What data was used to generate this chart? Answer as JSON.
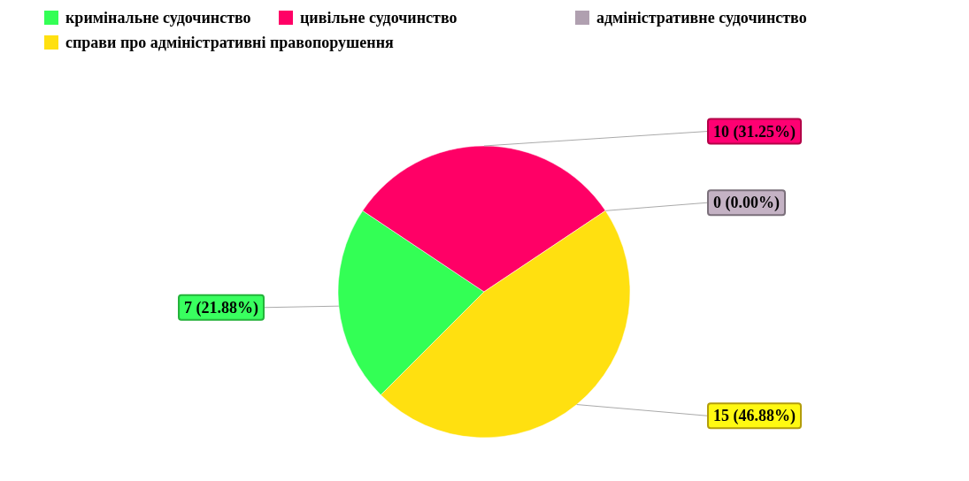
{
  "chart_data": {
    "type": "pie",
    "categories": [
      "кримінальне судочинство",
      "цивільне судочинство",
      "адміністративне судочинство",
      "справи про адміністративні правопорушення"
    ],
    "values": [
      7,
      10,
      0,
      15
    ],
    "colors": [
      "#33ff55",
      "#ff0066",
      "#b0a0b0",
      "#ffe010"
    ],
    "value_labels": [
      "7 (21.88%)",
      "10 (31.25%)",
      "0 (0.00%)",
      "15 (46.88%)"
    ],
    "legend": "top left"
  }
}
